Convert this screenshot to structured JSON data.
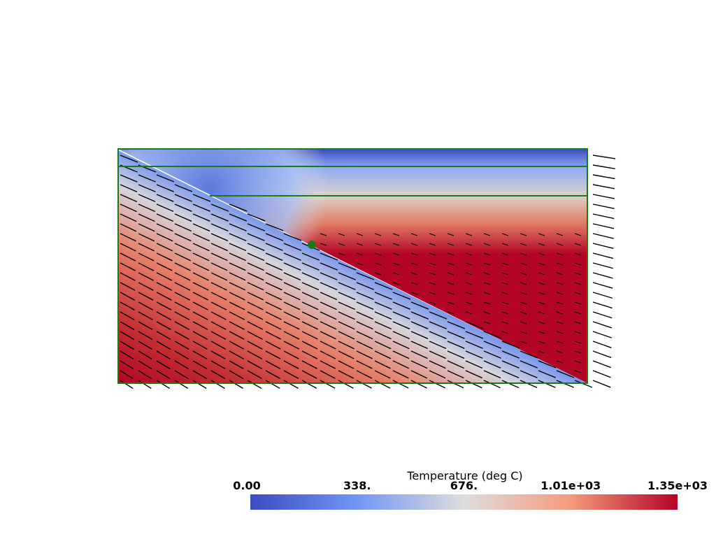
{
  "colorbar": {
    "title": "Temperature (deg C)",
    "range": [
      0,
      1352
    ],
    "ticks": [
      {
        "value": 0,
        "label": "0.00"
      },
      {
        "value": 338,
        "label": "338."
      },
      {
        "value": 676,
        "label": "676."
      },
      {
        "value": 1014,
        "label": "1.01e+03"
      },
      {
        "value": 1352,
        "label": "1.35e+03"
      }
    ],
    "colors": [
      "#3b4cc0",
      "#7396f5",
      "#dddddd",
      "#f49a7b",
      "#b40426"
    ]
  }
}
